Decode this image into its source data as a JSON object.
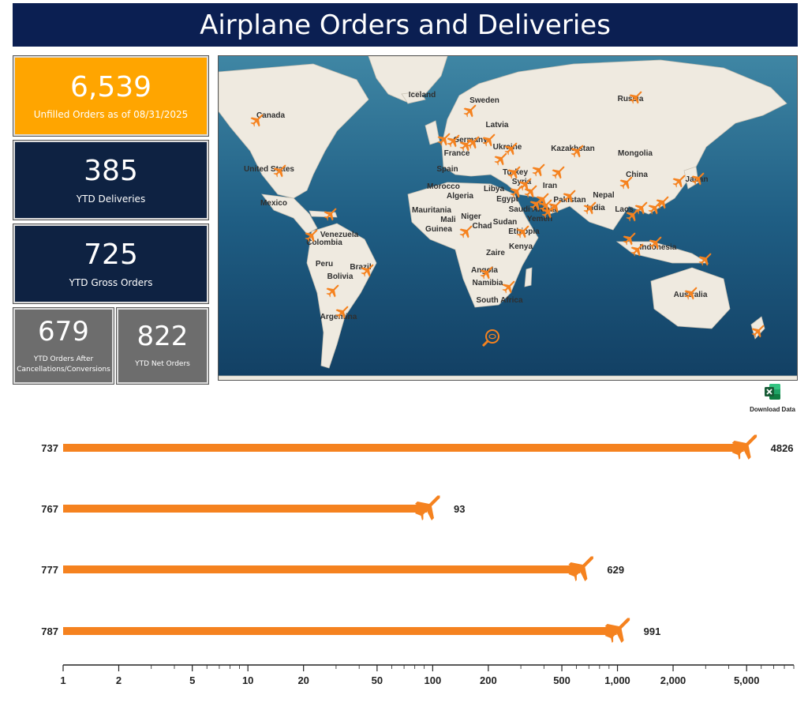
{
  "header": {
    "title": "Airplane Orders and Deliveries"
  },
  "kpis": {
    "unfilled": {
      "value": "6,539",
      "label": "Unfilled Orders as of 08/31/2025",
      "color": "#ffa500"
    },
    "ytd_deliveries": {
      "value": "385",
      "label": "YTD Deliveries",
      "color": "#0e2242"
    },
    "ytd_gross": {
      "value": "725",
      "label": "YTD Gross Orders",
      "color": "#0e2242"
    },
    "ytd_after_cancel": {
      "value": "679",
      "label": "YTD Orders After Cancellations/Conversions",
      "color": "#6d6d6d"
    },
    "ytd_net": {
      "value": "822",
      "label": "YTD Net Orders",
      "color": "#6d6d6d"
    }
  },
  "map": {
    "labels": [
      "Iceland",
      "Sweden",
      "Russia",
      "Canada",
      "Latvia",
      "Germany",
      "France",
      "Ukraine",
      "Kazakhstan",
      "Mongolia",
      "United States",
      "Spain",
      "Turkey",
      "Syria",
      "Iran",
      "China",
      "Japan",
      "Morocco",
      "Algeria",
      "Libya",
      "Egypt",
      "Saudi Arabia",
      "Pakistan",
      "Nepal",
      "India",
      "Mexico",
      "Mauritania",
      "Mali",
      "Niger",
      "Chad",
      "Sudan",
      "Yemen",
      "Laos",
      "Guinea",
      "Ethiopia",
      "Venezuela",
      "Colombia",
      "Kenya",
      "Indonesia",
      "Zaire",
      "Peru",
      "Brazil",
      "Bolivia",
      "Angola",
      "Namibia",
      "Australia",
      "South Africa",
      "Argentina"
    ],
    "icon": "airplane-icon",
    "accent": "#f5821f"
  },
  "download": {
    "label": "Download Data",
    "icon": "excel-icon"
  },
  "chart_data": {
    "type": "bar",
    "orientation": "horizontal",
    "categories": [
      "737",
      "767",
      "777",
      "787"
    ],
    "values": [
      4826,
      93,
      629,
      991
    ],
    "x_scale": "log",
    "xlim": [
      1,
      9000
    ],
    "x_ticks": [
      1,
      2,
      5,
      10,
      20,
      50,
      100,
      200,
      500,
      1000,
      2000,
      5000
    ],
    "x_tick_labels": [
      "1",
      "2",
      "5",
      "10",
      "20",
      "50",
      "100",
      "200",
      "500",
      "1,000",
      "2,000",
      "5,000"
    ],
    "bar_color": "#f5821f",
    "marker": "airplane-icon",
    "title": "",
    "xlabel": "",
    "ylabel": ""
  }
}
